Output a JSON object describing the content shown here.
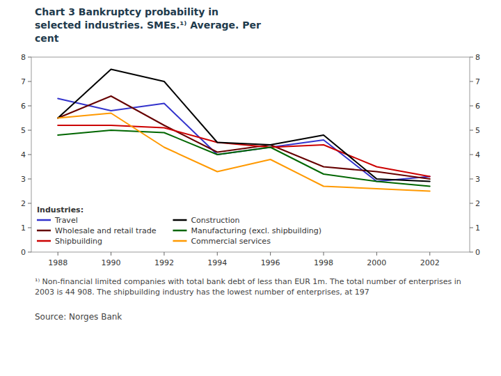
{
  "chart_data": {
    "type": "line",
    "title": "Chart 3 Bankruptcy probability in\nselected industries. SMEs.¹⁾ Average. Per\ncent",
    "footnote": "¹⁾ Non-financial limited companies with total bank debt of less than EUR 1m. The total number of enterprises in 2003 is 44 908. The shipbuilding industry has the lowest number of enterprises, at 197",
    "source": "Source: Norges Bank",
    "legend_title": "Industries:",
    "x": [
      1988,
      1990,
      1992,
      1994,
      1996,
      1998,
      2000,
      2002
    ],
    "xlim": [
      1987,
      2003.5
    ],
    "xticks": [
      1988,
      1990,
      1992,
      1994,
      1996,
      1998,
      2000,
      2002
    ],
    "ylim": [
      0,
      8
    ],
    "yticks": [
      0,
      1,
      2,
      3,
      4,
      5,
      6,
      7,
      8
    ],
    "y2lim": [
      0,
      8
    ],
    "y2ticks": [
      0,
      1,
      2,
      3,
      4,
      5,
      6,
      7,
      8
    ],
    "grid": false,
    "legend": "lower left",
    "series": [
      {
        "name": "Travel",
        "color": "#3333cc",
        "values": [
          6.3,
          5.8,
          6.1,
          4.0,
          4.3,
          4.6,
          2.9,
          3.1
        ]
      },
      {
        "name": "Wholesale and retail trade",
        "color": "#660000",
        "values": [
          5.5,
          6.4,
          5.2,
          4.1,
          4.4,
          3.5,
          3.3,
          3.0
        ]
      },
      {
        "name": "Shipbuilding",
        "color": "#cc0000",
        "values": [
          5.2,
          5.2,
          5.1,
          4.5,
          4.3,
          4.4,
          3.5,
          3.1
        ]
      },
      {
        "name": "Construction",
        "color": "#000000",
        "values": [
          5.5,
          7.5,
          7.0,
          4.5,
          4.4,
          4.8,
          3.0,
          2.9
        ]
      },
      {
        "name": "Manufacturing (excl. shipbuilding)",
        "color": "#006600",
        "values": [
          4.8,
          5.0,
          4.9,
          4.0,
          4.3,
          3.2,
          2.9,
          2.7
        ]
      },
      {
        "name": "Commercial services",
        "color": "#ff9900",
        "values": [
          5.5,
          5.7,
          4.3,
          3.3,
          3.8,
          2.7,
          2.6,
          2.5
        ]
      }
    ]
  }
}
